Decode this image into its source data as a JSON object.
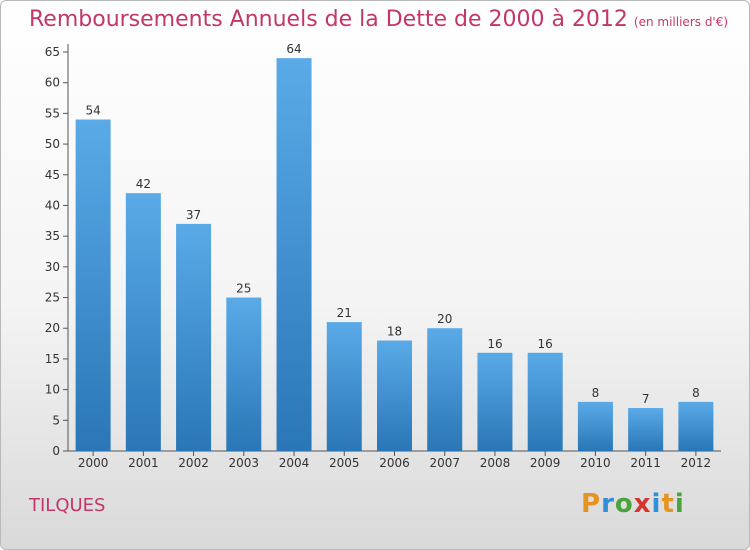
{
  "title": "Remboursements Annuels de la Dette de 2000 à 2012",
  "unit_note": "(en milliers d'€)",
  "commune": "TILQUES",
  "logo": "Proxiti",
  "colors": {
    "bar_top": "#5aaae8",
    "bar_bottom": "#2a76b6",
    "title": "#c3366a"
  },
  "chart_data": {
    "type": "bar",
    "title": "Remboursements Annuels de la Dette de 2000 à 2012",
    "subtitle": "(en milliers d'€)",
    "categories": [
      "2000",
      "2001",
      "2002",
      "2003",
      "2004",
      "2005",
      "2006",
      "2007",
      "2008",
      "2009",
      "2010",
      "2011",
      "2012"
    ],
    "values": [
      54,
      42,
      37,
      25,
      64,
      21,
      18,
      20,
      16,
      16,
      8,
      7,
      8
    ],
    "xlabel": "",
    "ylabel": "",
    "ylim": [
      0,
      65
    ],
    "yticks": [
      0,
      5,
      10,
      15,
      20,
      25,
      30,
      35,
      40,
      45,
      50,
      55,
      60,
      65
    ],
    "grid": false,
    "data_labels": true
  }
}
